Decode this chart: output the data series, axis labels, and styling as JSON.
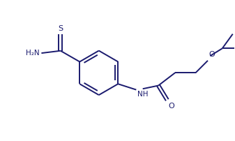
{
  "background_color": "#ffffff",
  "line_color": "#1a1a6e",
  "line_width": 1.4,
  "font_size": 7.5,
  "fig_width": 3.37,
  "fig_height": 2.02,
  "dpi": 100,
  "xlim": [
    0,
    10
  ],
  "ylim": [
    0,
    6
  ]
}
